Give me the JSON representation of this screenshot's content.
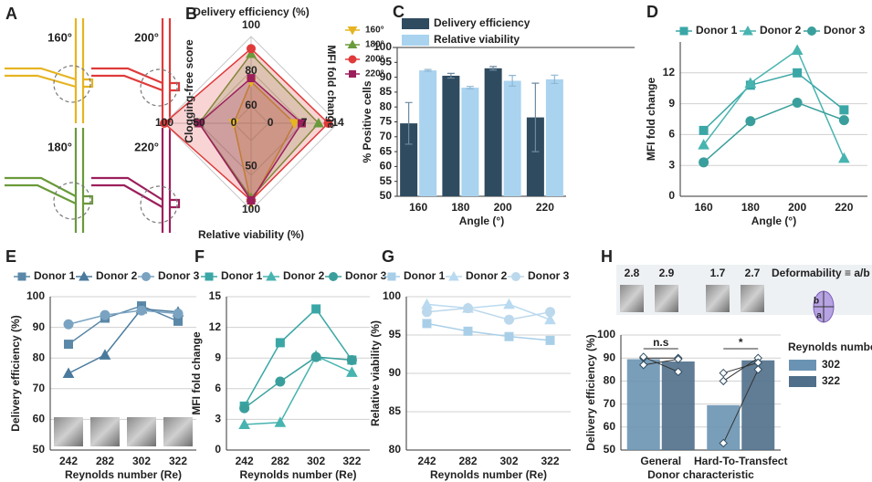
{
  "panel_labels": [
    "A",
    "B",
    "C",
    "D",
    "E",
    "F",
    "G",
    "H"
  ],
  "diagram": {
    "angles": [
      "160°",
      "200°",
      "180°",
      "220°"
    ],
    "colors": [
      "#e6b422",
      "#e03a3a",
      "#6a9a3a",
      "#9c1f5c"
    ]
  },
  "chart_data": [
    {
      "type": "radar",
      "axes": [
        {
          "label": "Delivery efficiency (%)",
          "lim": [
            50,
            100
          ],
          "ticks": [
            60,
            80,
            100
          ]
        },
        {
          "label": "MFI fold change",
          "lim": [
            -4,
            14
          ],
          "ticks": [
            0,
            7,
            14
          ]
        },
        {
          "label": "Relative viability (%)",
          "lim": [
            0,
            100
          ],
          "ticks": [
            50,
            100
          ]
        },
        {
          "label": "Clogging-free score",
          "lim": [
            -25,
            100
          ],
          "ticks": [
            0,
            50,
            100
          ]
        }
      ],
      "series": [
        {
          "name": "160°",
          "color": "#e6b422",
          "marker": "triangle-down",
          "values": [
            74,
            5,
            92,
            0
          ]
        },
        {
          "name": "180°",
          "color": "#6a9a3a",
          "marker": "triangle",
          "values": [
            90,
            10,
            86,
            50
          ]
        },
        {
          "name": "200°",
          "color": "#e03a3a",
          "marker": "circle",
          "values": [
            93,
            12,
            89,
            100
          ]
        },
        {
          "name": "220°",
          "color": "#9c1f5c",
          "marker": "square",
          "values": [
            76,
            6.5,
            89,
            50
          ]
        }
      ]
    },
    {
      "type": "bar",
      "ylabel": "% Positive cells",
      "xlabel": "Angle (°)",
      "categories": [
        "160",
        "180",
        "200",
        "220"
      ],
      "ylim": [
        50,
        100
      ],
      "yticks": [
        50,
        55,
        60,
        65,
        70,
        75,
        80,
        85,
        90,
        95,
        100
      ],
      "grid": false,
      "series": [
        {
          "name": "Delivery efficiency",
          "color": "#2f4b60",
          "values": [
            74.5,
            90.5,
            93,
            76.5
          ],
          "errors": [
            7,
            0.8,
            0.6,
            11.5
          ]
        },
        {
          "name": "Relative viability",
          "color": "#a9d3ef",
          "values": [
            92.3,
            86.5,
            88.8,
            89.3
          ],
          "errors": [
            0.3,
            0.4,
            1.8,
            1.4
          ]
        }
      ]
    },
    {
      "type": "line",
      "ylabel": "MFI fold change",
      "xlabel": "Angle (°)",
      "categories": [
        "160",
        "180",
        "200",
        "220"
      ],
      "ylim": [
        0,
        15
      ],
      "yticks": [
        0,
        3,
        6,
        9,
        12
      ],
      "grid": true,
      "series": [
        {
          "name": "Donor 1",
          "color": "#3aa7a6",
          "marker": "square",
          "values": [
            6.4,
            10.8,
            12,
            8.4
          ]
        },
        {
          "name": "Donor 2",
          "color": "#48b4b0",
          "marker": "triangle",
          "values": [
            5,
            11,
            14.2,
            3.7
          ]
        },
        {
          "name": "Donor 3",
          "color": "#3a9f9c",
          "marker": "circle",
          "values": [
            3.3,
            7.3,
            9.1,
            7.4
          ]
        }
      ]
    },
    {
      "type": "line",
      "ylabel": "Delivery efficiency (%)",
      "xlabel": "Reynolds number (Re)",
      "categories": [
        "242",
        "282",
        "302",
        "322"
      ],
      "ylim": [
        50,
        100
      ],
      "yticks": [
        50,
        60,
        70,
        80,
        90,
        100
      ],
      "grid": true,
      "series": [
        {
          "name": "Donor 1",
          "color": "#5b88a8",
          "marker": "square",
          "values": [
            84.5,
            93,
            97,
            92
          ]
        },
        {
          "name": "Donor 2",
          "color": "#4a7a9c",
          "marker": "triangle",
          "values": [
            75,
            81,
            96,
            95
          ]
        },
        {
          "name": "Donor 3",
          "color": "#7aa3c2",
          "marker": "circle",
          "values": [
            91,
            94,
            95.5,
            94.5
          ]
        }
      ]
    },
    {
      "type": "line",
      "ylabel": "MFI fold change",
      "xlabel": "Reynolds number (Re)",
      "categories": [
        "242",
        "282",
        "302",
        "322"
      ],
      "ylim": [
        0,
        15
      ],
      "yticks": [
        0,
        3,
        6,
        9,
        12,
        15
      ],
      "grid": true,
      "series": [
        {
          "name": "Donor 1",
          "color": "#3aa7a6",
          "marker": "square",
          "values": [
            4.3,
            10.5,
            13.8,
            8.8
          ]
        },
        {
          "name": "Donor 2",
          "color": "#48b4b0",
          "marker": "triangle",
          "values": [
            2.5,
            2.7,
            9.2,
            7.6
          ]
        },
        {
          "name": "Donor 3",
          "color": "#3a9f9c",
          "marker": "circle",
          "values": [
            4.1,
            6.7,
            9.1,
            8.8
          ]
        }
      ]
    },
    {
      "type": "line",
      "ylabel": "Relative viability (%)",
      "xlabel": "Reynolds number (Re)",
      "categories": [
        "242",
        "282",
        "302",
        "322"
      ],
      "ylim": [
        80,
        100
      ],
      "yticks": [
        80,
        85,
        90,
        95,
        100
      ],
      "grid": true,
      "series": [
        {
          "name": "Donor 1",
          "color": "#a9cfe8",
          "marker": "square",
          "values": [
            96.5,
            95.5,
            94.8,
            94.3
          ]
        },
        {
          "name": "Donor 2",
          "color": "#b9daf0",
          "marker": "triangle",
          "values": [
            99,
            98.5,
            99,
            97
          ]
        },
        {
          "name": "Donor 3",
          "color": "#bcd8ec",
          "marker": "circle",
          "values": [
            98,
            98.5,
            97,
            98
          ]
        }
      ]
    },
    {
      "type": "paired-bar",
      "ylabel": "Delivery efficiency (%)",
      "xlabel": "Donor characteristic",
      "categories": [
        "General",
        "Hard-To-Transfect"
      ],
      "ylim": [
        50,
        100
      ],
      "yticks": [
        50,
        60,
        70,
        80,
        90,
        100
      ],
      "grid": true,
      "legend_title": "Reynolds number",
      "series": [
        {
          "name": "302",
          "color": "#6a93b3",
          "values": [
            89.5,
            69.5
          ],
          "points": [
            [
              90,
              87,
              90.5
            ],
            [
              80,
              83.5,
              53
            ]
          ]
        },
        {
          "name": "322",
          "color": "#4f6f8a",
          "values": [
            88.5,
            89
          ],
          "points": [
            [
              90,
              89.5,
              84
            ],
            [
              90,
              88,
              85
            ]
          ]
        }
      ],
      "significance": [
        "n.s",
        "*"
      ],
      "deformability": {
        "label": "Deformability ≡ a/b",
        "values": [
          2.8,
          2.9,
          1.7,
          2.7
        ],
        "axis_labels": [
          "b",
          "a"
        ]
      }
    }
  ]
}
